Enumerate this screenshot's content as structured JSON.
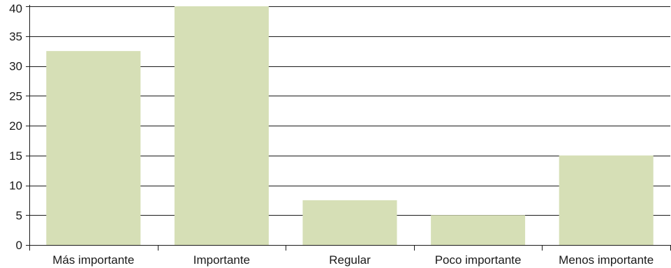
{
  "chart_data": {
    "type": "bar",
    "categories": [
      "Más importante",
      "Importante",
      "Regular",
      "Poco importante",
      "Menos importante"
    ],
    "values": [
      32.5,
      40,
      7.5,
      5,
      15
    ],
    "ylim": [
      0,
      40
    ],
    "yticks": [
      0,
      5,
      10,
      15,
      20,
      25,
      30,
      35,
      40
    ],
    "grid": true,
    "colors": {
      "bar": "#d6dfb6",
      "grid": "#1a1a1a",
      "axis": "#1a1a1a"
    }
  }
}
